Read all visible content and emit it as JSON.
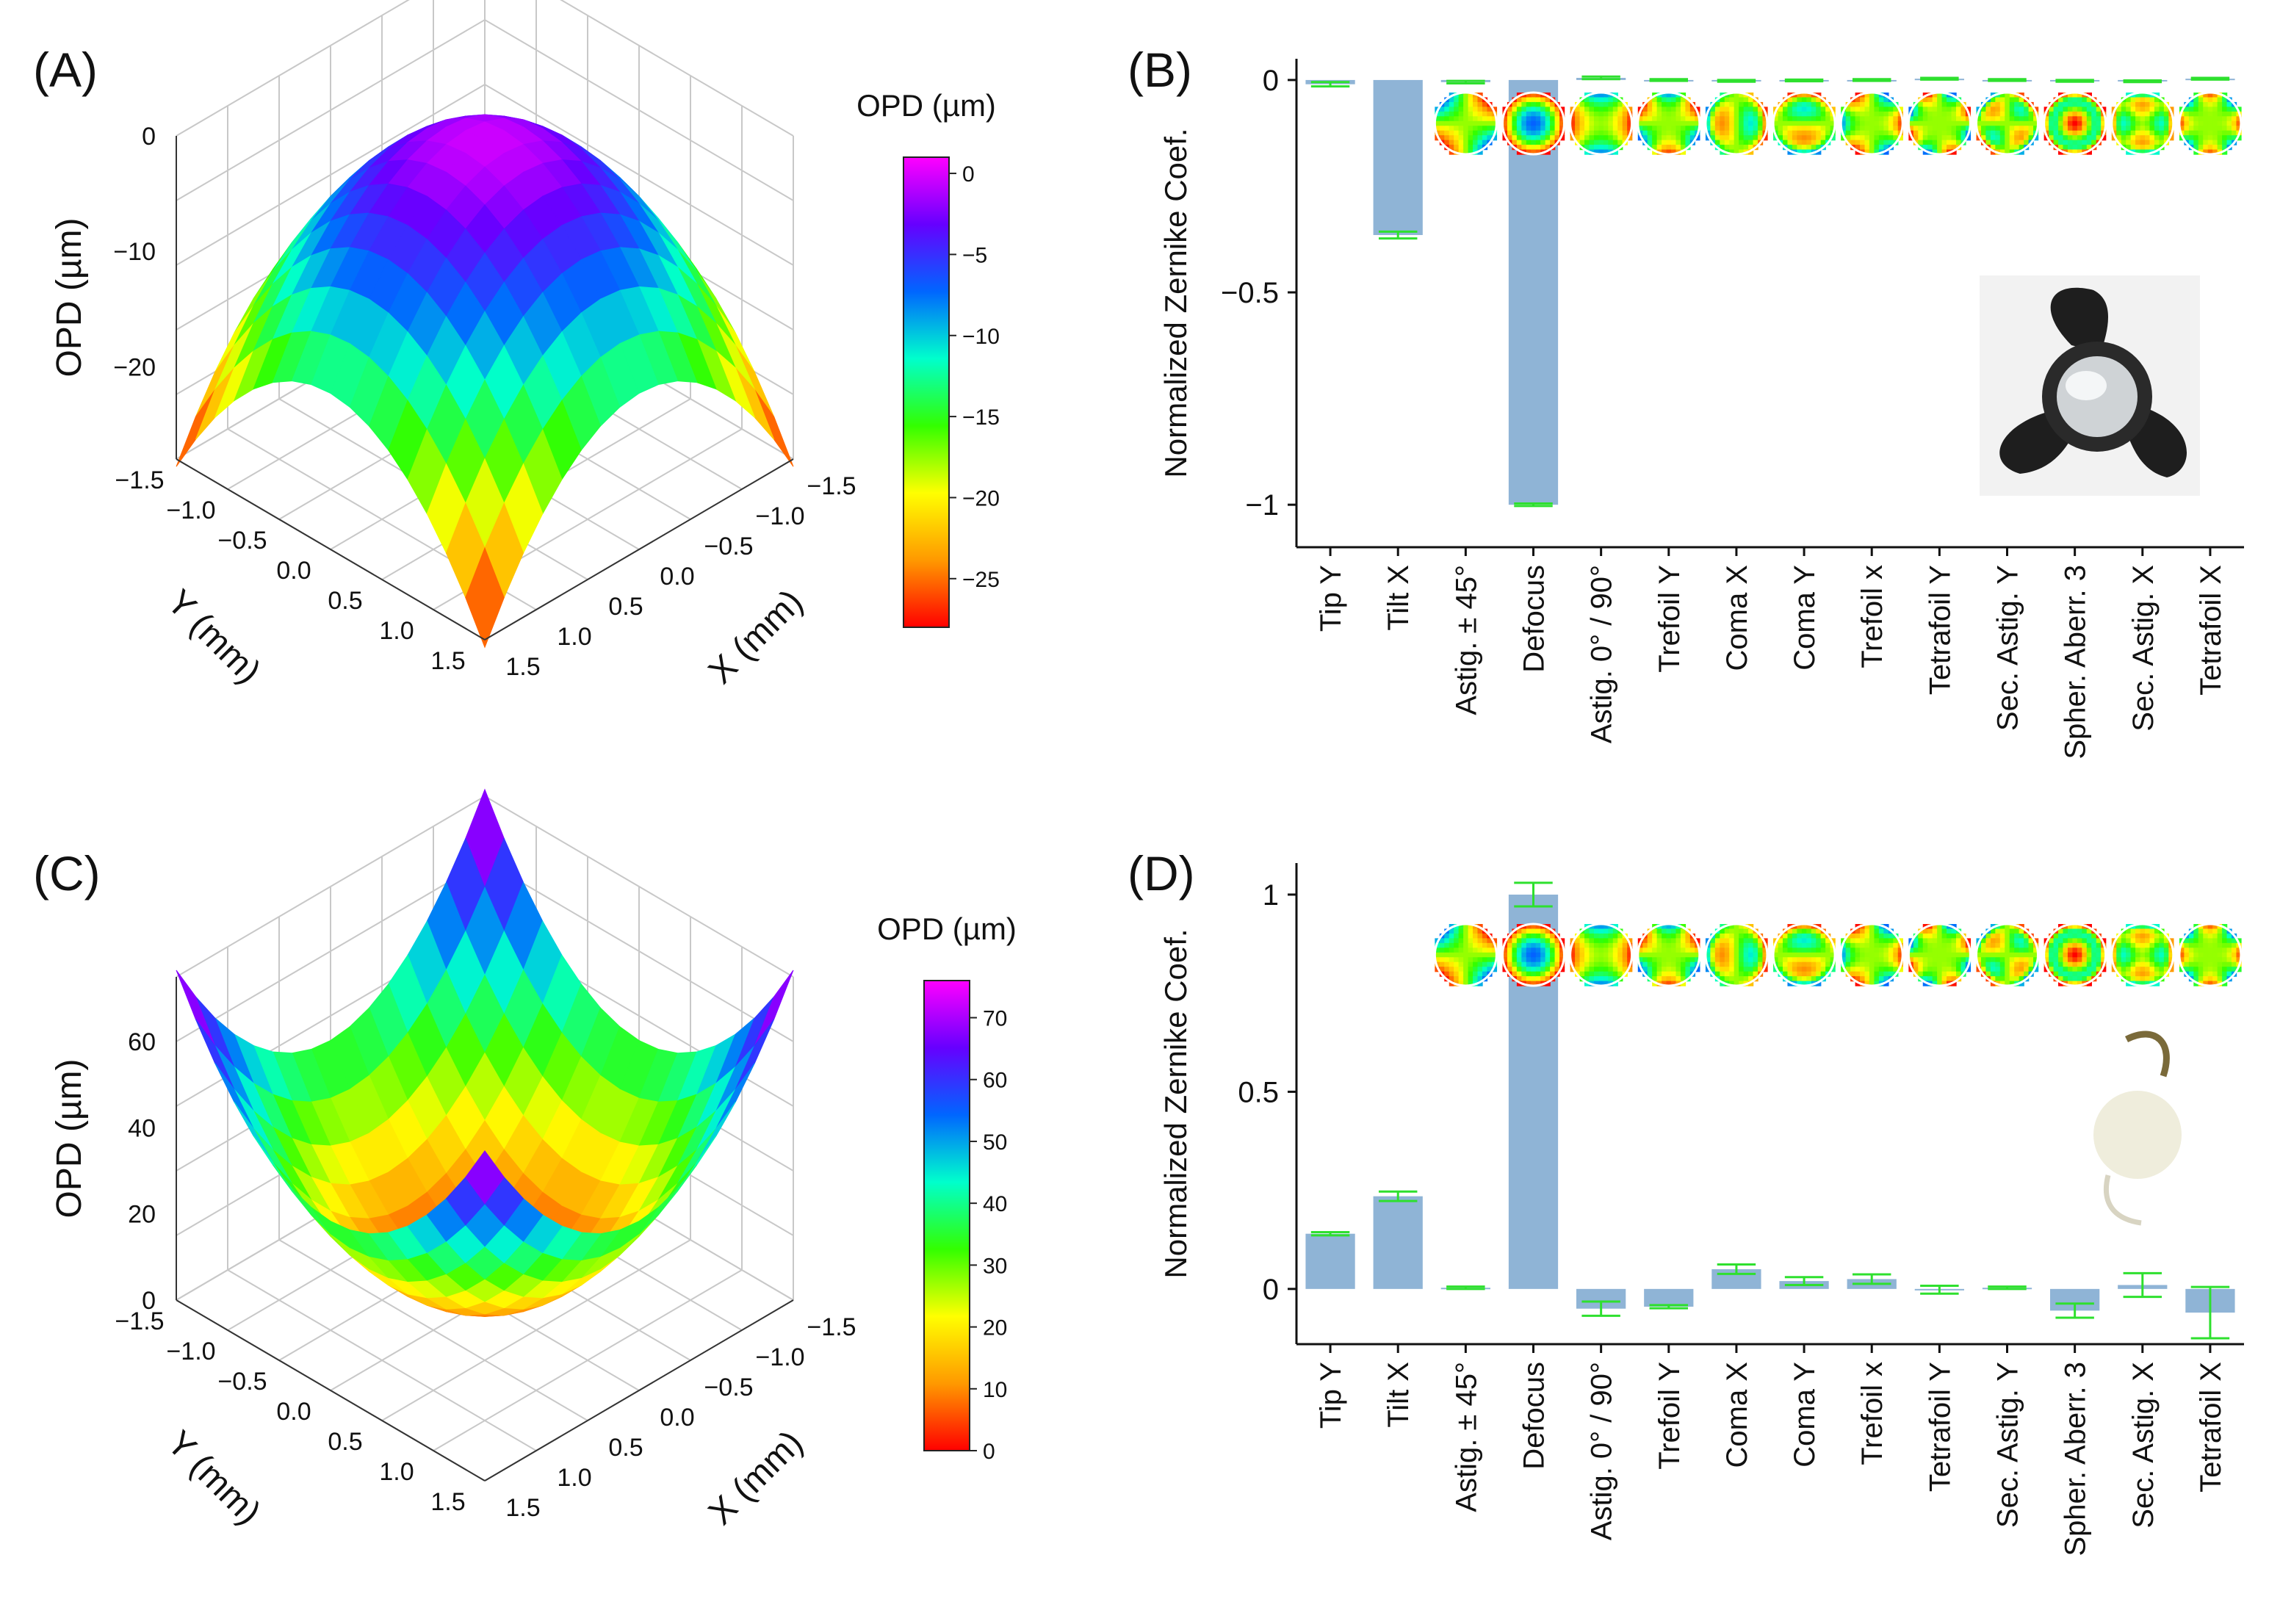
{
  "panel_labels": {
    "A": "(A)",
    "B": "(B)",
    "C": "(C)",
    "D": "(D)"
  },
  "colors": {
    "bar_fill": "#8fb4d6",
    "error_bar": "#2ee02e",
    "axis": "#111111",
    "grid": "#c8c8c8",
    "colormap": [
      "#ff0000",
      "#ff9900",
      "#ffff00",
      "#33ff00",
      "#00ffcc",
      "#0066ff",
      "#6600ff",
      "#ff00ff"
    ]
  },
  "chart_data": [
    {
      "id": "A",
      "type": "surface3d",
      "surface": "dome",
      "xlabel": "X (mm)",
      "ylabel": "Y (mm)",
      "zlabel": "OPD (µm)",
      "xticks": [
        "-1.5",
        "-1.0",
        "-0.5",
        "0.0",
        "0.5",
        "1.0",
        "1.5"
      ],
      "yticks": [
        "-1.5",
        "-1.0",
        "-0.5",
        "0.0",
        "0.5",
        "1.0",
        "1.5"
      ],
      "zticks": [
        "0",
        "-10",
        "-20"
      ],
      "zrange": [
        -28,
        0
      ],
      "colorbar": {
        "label": "OPD (µm)",
        "ticks": [
          "0",
          "-5",
          "-10",
          "-15",
          "-20",
          "-25"
        ],
        "range": [
          -28,
          1
        ]
      }
    },
    {
      "id": "B",
      "type": "bar",
      "ylabel": "Normalized Zernike Coef.",
      "ylim": [
        -1.1,
        0.05
      ],
      "yticks": [
        "0",
        "-0.5",
        "-1"
      ],
      "ytick_values": [
        0,
        -0.5,
        -1
      ],
      "categories": [
        "Tip Y",
        "Tilt X",
        "Astig. ± 45°",
        "Defocus",
        "Astig. 0° / 90°",
        "Trefoil Y",
        "Coma X",
        "Coma Y",
        "Trefoil x",
        "Tetrafoil Y",
        "Sec. Astig. Y",
        "Spher. Aberr. 3",
        "Sec. Astig. X",
        "Tetrafoil X"
      ],
      "values": [
        -0.01,
        -0.365,
        -0.005,
        -1.0,
        0.005,
        0.0,
        -0.002,
        -0.001,
        0.0,
        0.003,
        0.0,
        -0.002,
        -0.003,
        0.003
      ],
      "errors": [
        0.005,
        0.008,
        0.003,
        0.003,
        0.003,
        0.002,
        0.002,
        0.002,
        0.002,
        0.002,
        0.002,
        0.002,
        0.002,
        0.002
      ],
      "zernike_maps": [
        "astig45",
        "defocus",
        "astig090",
        "trefoilY",
        "comaX",
        "comaY",
        "trefoilX",
        "tetrafoilY",
        "secastigY",
        "spherical",
        "secastigX",
        "tetrafoilX"
      ]
    },
    {
      "id": "C",
      "type": "surface3d",
      "surface": "bowl",
      "xlabel": "X (mm)",
      "ylabel": "Y (mm)",
      "zlabel": "OPD (µm)",
      "xticks": [
        "-1.5",
        "-1.0",
        "-0.5",
        "0.0",
        "0.5",
        "1.0",
        "1.5"
      ],
      "yticks": [
        "-1.5",
        "-1.0",
        "-0.5",
        "0.0",
        "0.5",
        "1.0",
        "1.5"
      ],
      "zticks": [
        "0",
        "20",
        "40",
        "60"
      ],
      "zrange": [
        0,
        75
      ],
      "colorbar": {
        "label": "OPD (µm)",
        "ticks": [
          "0",
          "10",
          "20",
          "30",
          "40",
          "50",
          "60",
          "70"
        ],
        "range": [
          0,
          76
        ]
      }
    },
    {
      "id": "D",
      "type": "bar",
      "ylabel": "Normalized Zernike Coef.",
      "ylim": [
        -0.14,
        1.08
      ],
      "yticks": [
        "1",
        "0.5",
        "0"
      ],
      "ytick_values": [
        1,
        0.5,
        0
      ],
      "categories": [
        "Tip Y",
        "Tilt X",
        "Astig. ± 45°",
        "Defocus",
        "Astig. 0° / 90°",
        "Trefoil Y",
        "Coma X",
        "Coma Y",
        "Trefoil x",
        "Tetrafoil Y",
        "Sec. Astig. Y",
        "Spher. Aberr. 3",
        "Sec. Astig. X",
        "Tetrafoil X"
      ],
      "values": [
        0.14,
        0.235,
        0.003,
        1.0,
        -0.05,
        -0.045,
        0.05,
        0.02,
        0.025,
        -0.002,
        0.003,
        -0.055,
        0.01,
        -0.06
      ],
      "errors": [
        0.004,
        0.012,
        0.003,
        0.03,
        0.018,
        0.004,
        0.012,
        0.01,
        0.012,
        0.01,
        0.003,
        0.018,
        0.03,
        0.065
      ],
      "zernike_maps": [
        "astig45",
        "defocus",
        "astig090",
        "trefoilY",
        "comaX",
        "comaY",
        "trefoilX",
        "tetrafoilY",
        "secastigY",
        "spherical",
        "secastigX",
        "tetrafoilX"
      ]
    }
  ]
}
